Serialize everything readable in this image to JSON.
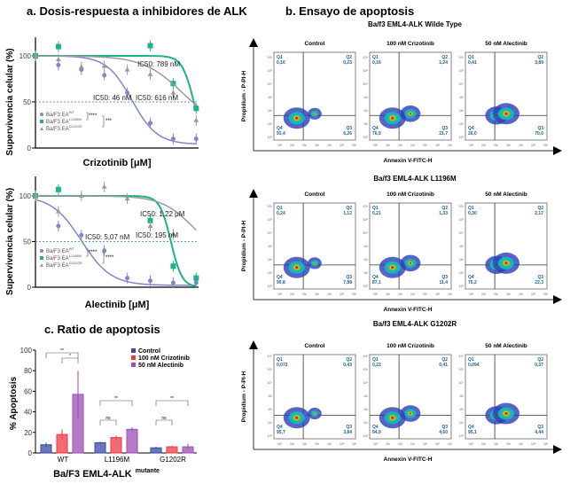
{
  "panel_a": {
    "title": "a. Dosis-respuesta a inhibidores de ALK",
    "ylabel": "Supervivencia celular (%)",
    "legend": [
      {
        "base": "Ba/F3 EA",
        "sup": "WT"
      },
      {
        "base": "Ba/F3 EA",
        "sup": "L1196M"
      },
      {
        "base": "Ba/F3 EA",
        "sup": "G1202R"
      }
    ],
    "colors": {
      "WT": "#7f86c9",
      "L1196M": "#1db38a",
      "G1202R": "#9a9a9a",
      "threshold": "#5aa6b0"
    }
  },
  "panel_b": {
    "title": "b. Ensayo de apoptosis",
    "xlabel": "Annexin V-FITC-H",
    "ylabel": "Propidium - P-PI-H",
    "conditions": [
      "Control",
      "100 nM Crizotinib",
      "50 nM Alectinib"
    ],
    "quadrant_color": "#1b5f8a",
    "rows": [
      {
        "title": "Ba/f3 EML4-ALK Wilde Type",
        "plots": [
          {
            "Q1": "0,16",
            "Q2": "0,23",
            "Q3": "6,26",
            "Q4": "93,4"
          },
          {
            "Q1": "0,16",
            "Q2": "1,24",
            "Q3": "21,7",
            "Q4": "76,9"
          },
          {
            "Q1": "0,41",
            "Q2": "3,89",
            "Q3": "70,0",
            "Q4": "26,0"
          }
        ]
      },
      {
        "title": "Ba/f3 EML4-ALK L1196M",
        "plots": [
          {
            "Q1": "0,24",
            "Q2": "1,12",
            "Q3": "7,88",
            "Q4": "90,8"
          },
          {
            "Q1": "0,21",
            "Q2": "1,33",
            "Q3": "11,4",
            "Q4": "87,1"
          },
          {
            "Q1": "0,30",
            "Q2": "2,17",
            "Q3": "22,3",
            "Q4": "75,2"
          }
        ]
      },
      {
        "title": "Ba/f3 EML4-ALK G1202R",
        "plots": [
          {
            "Q1": "0,072",
            "Q2": "0,43",
            "Q3": "3,84",
            "Q4": "95,7"
          },
          {
            "Q1": "0,22",
            "Q2": "0,41",
            "Q3": "4,60",
            "Q4": "94,9"
          },
          {
            "Q1": "0,094",
            "Q2": "0,37",
            "Q3": "4,44",
            "Q4": "95,1"
          }
        ]
      }
    ],
    "axis_ticks": [
      "10⁰",
      "10¹",
      "10²",
      "10³",
      "10⁴",
      "10⁵",
      "10⁶"
    ]
  },
  "chart_data": [
    {
      "type": "scatter",
      "xlabel": "Crizotinib [μM]",
      "ylabel": "Supervivencia celular (%)",
      "yticks": [
        "0",
        "50",
        "100"
      ],
      "ylim": [
        0,
        120
      ],
      "threshold": 50,
      "series": [
        {
          "name": "Ba/F3 EA WT",
          "values": [
            100,
            90,
            85,
            79,
            60,
            27,
            10,
            10
          ],
          "ic50_label": "IC50: 46 nM"
        },
        {
          "name": "Ba/F3 EA L1196M",
          "values": [
            100,
            110,
            null,
            null,
            null,
            111,
            70,
            43
          ],
          "ic50_label": "IC50: 789 nM"
        },
        {
          "name": "Ba/F3 EA G1202R",
          "values": [
            100,
            96,
            88,
            89,
            85,
            80,
            60,
            30
          ],
          "ic50_label": "IC50: 616 nM"
        }
      ],
      "significance": [
        "****",
        "***"
      ]
    },
    {
      "type": "scatter",
      "xlabel": "Alectinib [μM]",
      "ylabel": "Supervivencia celular (%)",
      "yticks": [
        "0",
        "50",
        "100"
      ],
      "ylim": [
        0,
        120
      ],
      "threshold": 50,
      "series": [
        {
          "name": "Ba/F3 EA WT",
          "values": [
            100,
            67,
            57,
            40,
            10,
            7,
            5,
            5
          ],
          "ic50_label": "IC50: 5,07 nM"
        },
        {
          "name": "Ba/F3 EA L1196M",
          "values": [
            100,
            107,
            null,
            null,
            null,
            73,
            23,
            10
          ],
          "ic50_label": "IC50: 195 nM"
        },
        {
          "name": "Ba/F3 EA G1202R",
          "values": [
            100,
            83,
            100,
            110,
            97,
            67,
            58,
            null
          ],
          "ic50_label": "IC50: 1,22 μM"
        }
      ],
      "significance": [
        "****",
        "****"
      ]
    },
    {
      "type": "bar",
      "title": "c. Ratio de apoptosis",
      "xlabel": "Ba/F3 EML4-ALK",
      "xlabel_sup": "mutante",
      "ylabel": "% Apoptosis",
      "ylim": [
        0,
        100
      ],
      "yticks": [
        "0",
        "20",
        "40",
        "60",
        "80",
        "100"
      ],
      "categories": [
        "WT",
        "L1196M",
        "G1202R"
      ],
      "legend_position": "top-right",
      "series": [
        {
          "name": "Control",
          "values": [
            8,
            10,
            5
          ],
          "err": [
            2,
            1,
            1
          ],
          "color": "#3848a8"
        },
        {
          "name": "100 nM Crizotinib",
          "values": [
            18,
            15,
            6
          ],
          "err": [
            5,
            2,
            1
          ],
          "color": "#ee3a43"
        },
        {
          "name": "50 nM Alectinib",
          "values": [
            57,
            23,
            6
          ],
          "err": [
            23,
            2,
            3
          ],
          "color": "#9c4fb5"
        }
      ],
      "significance": [
        {
          "group": "WT",
          "pair": "Control-Alectinib",
          "label": "**"
        },
        {
          "group": "WT",
          "pair": "Crizotinib-Alectinib",
          "label": "*"
        },
        {
          "group": "L1196M",
          "pair": "Control-Alectinib",
          "label": "**"
        },
        {
          "group": "L1196M",
          "pair": "Control-Crizotinib",
          "label": "ns"
        },
        {
          "group": "G1202R",
          "pair": "Control-Alectinib",
          "label": "**"
        },
        {
          "group": "G1202R",
          "pair": "Control-Crizotinib",
          "label": "ns"
        }
      ]
    }
  ]
}
